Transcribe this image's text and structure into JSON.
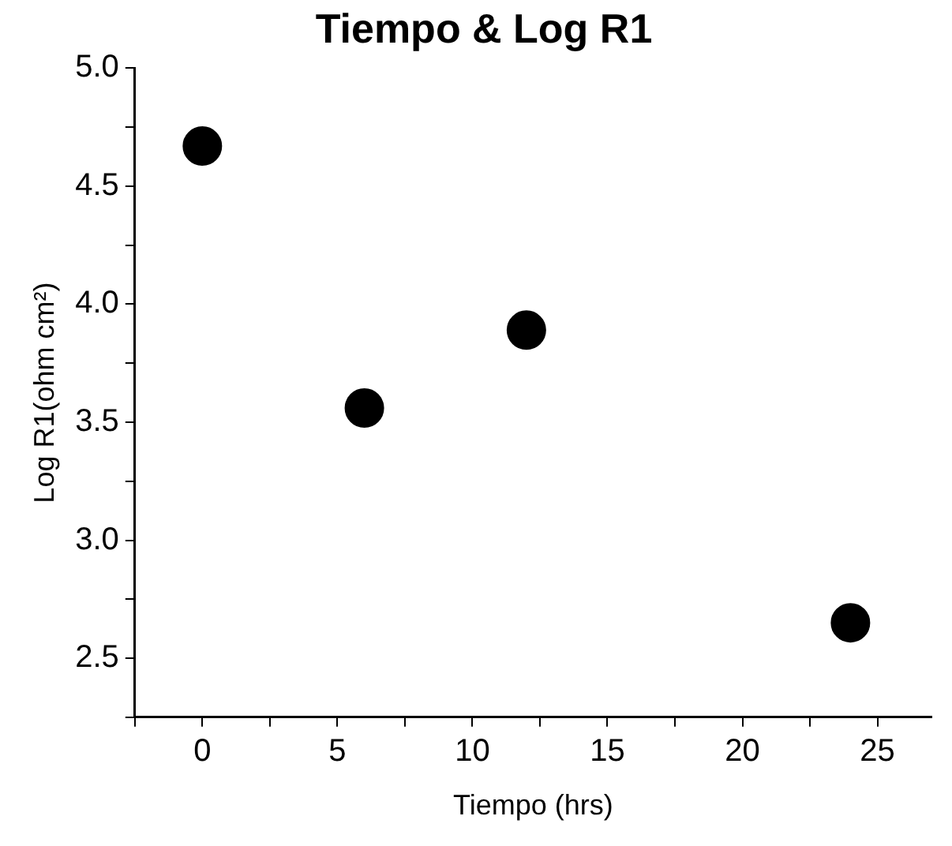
{
  "chart_data": {
    "type": "scatter",
    "title": "Tiempo & Log R1",
    "xlabel": "Tiempo (hrs)",
    "ylabel": "Log R1(ohm cm²)",
    "x": [
      0,
      6,
      12,
      24
    ],
    "series": [
      {
        "color": "#000000",
        "values": [
          4.67,
          3.56,
          3.89,
          2.65
        ]
      }
    ],
    "marker": "circle",
    "grid": false,
    "legend": false,
    "xlim": [
      -2.5,
      27
    ],
    "ylim": [
      2.25,
      5.0
    ],
    "xticks": [
      {
        "value": -2.5,
        "label": null
      },
      0,
      {
        "value": 2.5,
        "label": null
      },
      5,
      {
        "value": 7.5,
        "label": null
      },
      10,
      {
        "value": 12.5,
        "label": null
      },
      15,
      {
        "value": 17.5,
        "label": null
      },
      20,
      {
        "value": 22.5,
        "label": null
      },
      25
    ],
    "yticks": [
      {
        "value": 2.25,
        "label": null
      },
      {
        "value": 2.5,
        "label": "2.5"
      },
      {
        "value": 2.75,
        "label": null
      },
      {
        "value": 3.0,
        "label": "3.0"
      },
      {
        "value": 3.25,
        "label": null
      },
      {
        "value": 3.5,
        "label": "3.5"
      },
      {
        "value": 3.75,
        "label": null
      },
      {
        "value": 4.0,
        "label": "4.0"
      },
      {
        "value": 4.25,
        "label": null
      },
      {
        "value": 4.5,
        "label": "4.5"
      },
      {
        "value": 4.75,
        "label": null
      },
      {
        "value": 5.0,
        "label": "5.0"
      }
    ]
  }
}
